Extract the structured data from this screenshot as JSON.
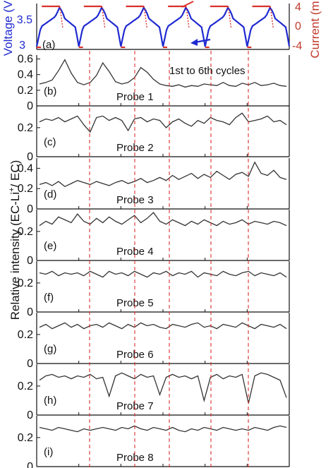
{
  "chart_data": {
    "type": "line",
    "cycles_note": "1st to 6th cycles",
    "ylabel": "Relative intensity (EC-Li+/EC)",
    "ylabel_main": "Relative intensity (EC-Li",
    "ylabel_sup": "+",
    "ylabel_tail": "/ EC)",
    "panel_a": {
      "label": "(a)",
      "voltage_label": "Voltage (V",
      "current_label": "Current (m",
      "voltage_ticks": [
        "3",
        "3.5"
      ],
      "current_ticks": [
        "-4",
        "0",
        "4"
      ],
      "voltage_color": "#1f2ad0",
      "current_color": "#c0392b",
      "voltage_range": [
        2.95,
        3.85
      ],
      "cycles": 6
    },
    "panels": [
      {
        "label": "(b)",
        "probe": "Probe 1",
        "yticks": [
          "0",
          "0.2",
          "0.4",
          "0.6"
        ],
        "ylim": [
          0,
          0.65
        ],
        "baseline": 0.24,
        "values": [
          0.28,
          0.3,
          0.33,
          0.45,
          0.59,
          0.42,
          0.3,
          0.27,
          0.3,
          0.39,
          0.55,
          0.44,
          0.31,
          0.28,
          0.3,
          0.36,
          0.49,
          0.43,
          0.34,
          0.28,
          0.26,
          0.25,
          0.27,
          0.24,
          0.26,
          0.25,
          0.28,
          0.27,
          0.26,
          0.3,
          0.26,
          0.25,
          0.29,
          0.27,
          0.3,
          0.26,
          0.27,
          0.29,
          0.26,
          0.25
        ]
      },
      {
        "label": "(c)",
        "probe": "Probe 2",
        "yticks": [
          "0",
          "0.2"
        ],
        "ylim": [
          0,
          0.35
        ],
        "baseline": 0.26,
        "values": [
          0.24,
          0.26,
          0.25,
          0.27,
          0.24,
          0.26,
          0.28,
          0.22,
          0.17,
          0.27,
          0.28,
          0.25,
          0.27,
          0.25,
          0.18,
          0.26,
          0.27,
          0.24,
          0.26,
          0.25,
          0.2,
          0.24,
          0.26,
          0.23,
          0.21,
          0.25,
          0.23,
          0.27,
          0.25,
          0.24,
          0.22,
          0.27,
          0.3,
          0.24,
          0.25,
          0.26,
          0.28,
          0.24,
          0.25,
          0.22
        ]
      },
      {
        "label": "(d)",
        "probe": "Probe 3",
        "yticks": [
          "0",
          "0.2",
          "0.4"
        ],
        "ylim": [
          0,
          0.5
        ],
        "baseline": 0.25,
        "values": [
          0.24,
          0.26,
          0.23,
          0.27,
          0.22,
          0.25,
          0.28,
          0.26,
          0.24,
          0.27,
          0.25,
          0.23,
          0.26,
          0.28,
          0.25,
          0.27,
          0.3,
          0.26,
          0.28,
          0.31,
          0.28,
          0.33,
          0.29,
          0.32,
          0.35,
          0.3,
          0.34,
          0.31,
          0.37,
          0.33,
          0.29,
          0.34,
          0.36,
          0.32,
          0.46,
          0.35,
          0.33,
          0.38,
          0.31,
          0.29
        ]
      },
      {
        "label": "(e)",
        "probe": "Probe 4",
        "yticks": [
          "0",
          "0.2"
        ],
        "ylim": [
          0,
          0.35
        ],
        "baseline": 0.25,
        "values": [
          0.24,
          0.27,
          0.25,
          0.3,
          0.28,
          0.26,
          0.32,
          0.27,
          0.25,
          0.29,
          0.26,
          0.3,
          0.27,
          0.25,
          0.28,
          0.31,
          0.26,
          0.29,
          0.33,
          0.27,
          0.25,
          0.28,
          0.26,
          0.24,
          0.27,
          0.25,
          0.28,
          0.26,
          0.24,
          0.27,
          0.25,
          0.26,
          0.28,
          0.25,
          0.27,
          0.26,
          0.25,
          0.27,
          0.26,
          0.24
        ]
      },
      {
        "label": "(f)",
        "probe": "Probe 5",
        "yticks": [
          "0",
          "0.2"
        ],
        "ylim": [
          0,
          0.35
        ],
        "baseline": 0.27,
        "values": [
          0.27,
          0.26,
          0.28,
          0.25,
          0.27,
          0.26,
          0.27,
          0.25,
          0.28,
          0.26,
          0.24,
          0.28,
          0.26,
          0.27,
          0.25,
          0.28,
          0.26,
          0.24,
          0.27,
          0.26,
          0.28,
          0.25,
          0.27,
          0.26,
          0.28,
          0.24,
          0.27,
          0.26,
          0.25,
          0.28,
          0.26,
          0.25,
          0.27,
          0.28,
          0.25,
          0.27,
          0.26,
          0.25,
          0.27,
          0.24
        ]
      },
      {
        "label": "(g)",
        "probe": "Probe 6",
        "yticks": [
          "0",
          "0.2"
        ],
        "ylim": [
          0,
          0.35
        ],
        "baseline": 0.26,
        "values": [
          0.25,
          0.27,
          0.24,
          0.26,
          0.28,
          0.25,
          0.27,
          0.24,
          0.26,
          0.27,
          0.25,
          0.28,
          0.26,
          0.24,
          0.27,
          0.25,
          0.28,
          0.26,
          0.27,
          0.25,
          0.24,
          0.27,
          0.26,
          0.25,
          0.27,
          0.28,
          0.25,
          0.26,
          0.24,
          0.27,
          0.26,
          0.25,
          0.28,
          0.26,
          0.24,
          0.27,
          0.26,
          0.25,
          0.27,
          0.24
        ]
      },
      {
        "label": "(h)",
        "probe": "Probe 7",
        "yticks": [
          "0",
          "0.2"
        ],
        "ylim": [
          0,
          0.35
        ],
        "baseline": 0.26,
        "values": [
          0.24,
          0.27,
          0.28,
          0.26,
          0.27,
          0.25,
          0.27,
          0.26,
          0.28,
          0.25,
          0.26,
          0.13,
          0.27,
          0.29,
          0.27,
          0.25,
          0.28,
          0.26,
          0.27,
          0.14,
          0.26,
          0.28,
          0.26,
          0.27,
          0.25,
          0.27,
          0.1,
          0.26,
          0.28,
          0.25,
          0.27,
          0.26,
          0.28,
          0.08,
          0.27,
          0.29,
          0.28,
          0.26,
          0.24,
          0.12
        ]
      },
      {
        "label": "(i)",
        "probe": "Probe 8",
        "yticks": [
          "0",
          "0.2"
        ],
        "ylim": [
          0,
          0.35
        ],
        "baseline": 0.25,
        "values": [
          0.27,
          0.26,
          0.25,
          0.27,
          0.26,
          0.25,
          0.24,
          0.26,
          0.25,
          0.26,
          0.27,
          0.26,
          0.25,
          0.27,
          0.26,
          0.28,
          0.26,
          0.25,
          0.27,
          0.26,
          0.25,
          0.27,
          0.25,
          0.24,
          0.26,
          0.25,
          0.27,
          0.26,
          0.25,
          0.27,
          0.26,
          0.25,
          0.26,
          0.25,
          0.27,
          0.26,
          0.25,
          0.27,
          0.28,
          0.27
        ]
      }
    ],
    "grid": false,
    "line_color": "#333333",
    "divider_color": "#d9302a"
  }
}
